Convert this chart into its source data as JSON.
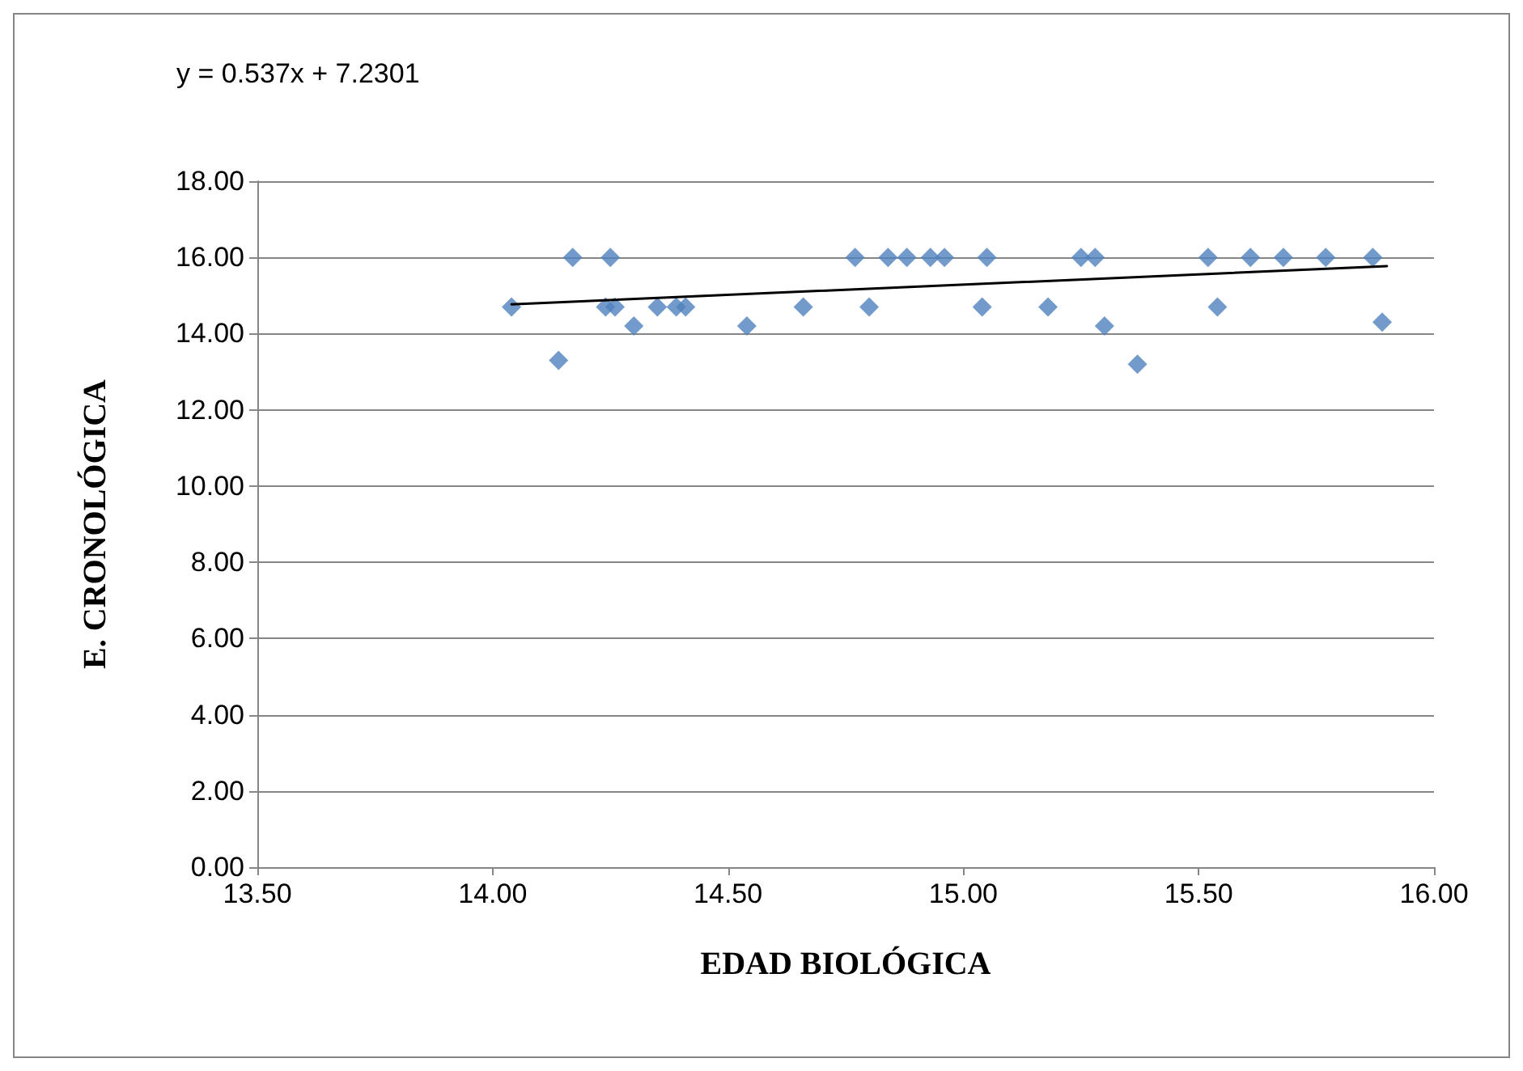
{
  "chart_data": {
    "type": "scatter",
    "xlabel": "EDAD BIOLÓGICA",
    "ylabel": "E. CRONOLÓGICA",
    "annotations": [
      "y = 0.537x + 7.2301"
    ],
    "xlim": [
      13.5,
      16
    ],
    "xticks": [
      {
        "value": 13.5,
        "label": "13.50"
      },
      {
        "value": 14,
        "label": "14.00"
      },
      {
        "value": 14.5,
        "label": "14.50"
      },
      {
        "value": 15,
        "label": "15.00"
      },
      {
        "value": 15.5,
        "label": "15.50"
      },
      {
        "value": 16,
        "label": "16.00"
      }
    ],
    "ylim": [
      0,
      18
    ],
    "yticks": [
      {
        "value": 0,
        "label": "0.00"
      },
      {
        "value": 2,
        "label": "2.00"
      },
      {
        "value": 4,
        "label": "4.00"
      },
      {
        "value": 6,
        "label": "6.00"
      },
      {
        "value": 8,
        "label": "8.00"
      },
      {
        "value": 10,
        "label": "10.00"
      },
      {
        "value": 12,
        "label": "12.00"
      },
      {
        "value": 14,
        "label": "14.00"
      },
      {
        "value": 16,
        "label": "16.00"
      },
      {
        "value": 18,
        "label": "18.00"
      }
    ],
    "grid": "y",
    "series": [
      {
        "color": "#4f81bd",
        "marker": "diamond",
        "x": [
          14.04,
          14.14,
          14.17,
          14.24,
          14.26,
          14.25,
          14.3,
          14.35,
          14.39,
          14.41,
          14.54,
          14.66,
          14.77,
          14.8,
          14.84,
          14.88,
          14.93,
          14.96,
          15.04,
          15.05,
          15.18,
          15.25,
          15.28,
          15.3,
          15.37,
          15.52,
          15.54,
          15.61,
          15.68,
          15.77,
          15.87,
          15.89
        ],
        "values": [
          14.7,
          13.3,
          16,
          14.7,
          14.7,
          16,
          14.2,
          14.7,
          14.7,
          14.7,
          14.2,
          14.7,
          16,
          14.7,
          16,
          16,
          16,
          16,
          14.7,
          16,
          14.7,
          16,
          16,
          14.2,
          13.2,
          16,
          14.7,
          16,
          16,
          16,
          16,
          14.3
        ]
      },
      {
        "type": "line",
        "color": "#000000",
        "marker": "none",
        "line_style": "solid",
        "x": [
          14.04,
          15.9
        ],
        "values": [
          14.77,
          15.77
        ]
      }
    ]
  }
}
